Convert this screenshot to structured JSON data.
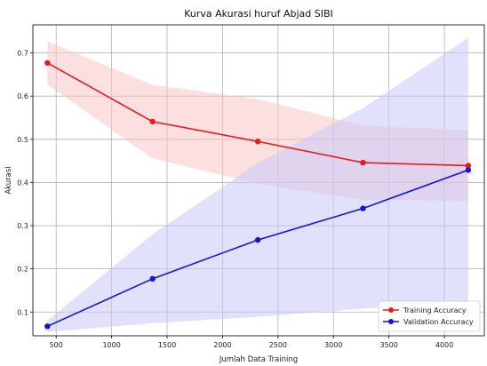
{
  "chart_data": {
    "type": "line",
    "title": "Kurva Akurasi huruf Abjad SIBI",
    "xlabel": "Jumlah Data Training",
    "ylabel": "Akurasi",
    "xlim": [
      290,
      4360
    ],
    "ylim": [
      0.045,
      0.765
    ],
    "xticks": [
      500,
      1000,
      1500,
      2000,
      2500,
      3000,
      3500,
      4000
    ],
    "yticks": [
      0.1,
      0.2,
      0.3,
      0.4,
      0.5,
      0.6,
      0.7
    ],
    "xtick_labels": [
      "500",
      "1000",
      "1500",
      "2000",
      "2500",
      "3000",
      "3500",
      "4000"
    ],
    "ytick_labels": [
      "0.1",
      "0.2",
      "0.3",
      "0.4",
      "0.5",
      "0.6",
      "0.7"
    ],
    "grid": true,
    "legend_position": "lower-right",
    "x": [
      421,
      1369,
      2318,
      3266,
      4215
    ],
    "series": [
      {
        "name": "Training Accuracy",
        "color": "#e8191a",
        "band_color": "#f9c4c4",
        "values": [
          0.677,
          0.541,
          0.495,
          0.446,
          0.439
        ],
        "upper": [
          0.727,
          0.626,
          0.593,
          0.532,
          0.521
        ],
        "lower": [
          0.627,
          0.456,
          0.397,
          0.36,
          0.357
        ]
      },
      {
        "name": "Validation Accuracy",
        "color": "#1414d4",
        "band_color": "#c9c9f7",
        "values": [
          0.067,
          0.177,
          0.267,
          0.34,
          0.429
        ],
        "upper": [
          0.08,
          0.28,
          0.445,
          0.572,
          0.735
        ],
        "lower": [
          0.054,
          0.074,
          0.089,
          0.108,
          0.123
        ]
      }
    ]
  }
}
